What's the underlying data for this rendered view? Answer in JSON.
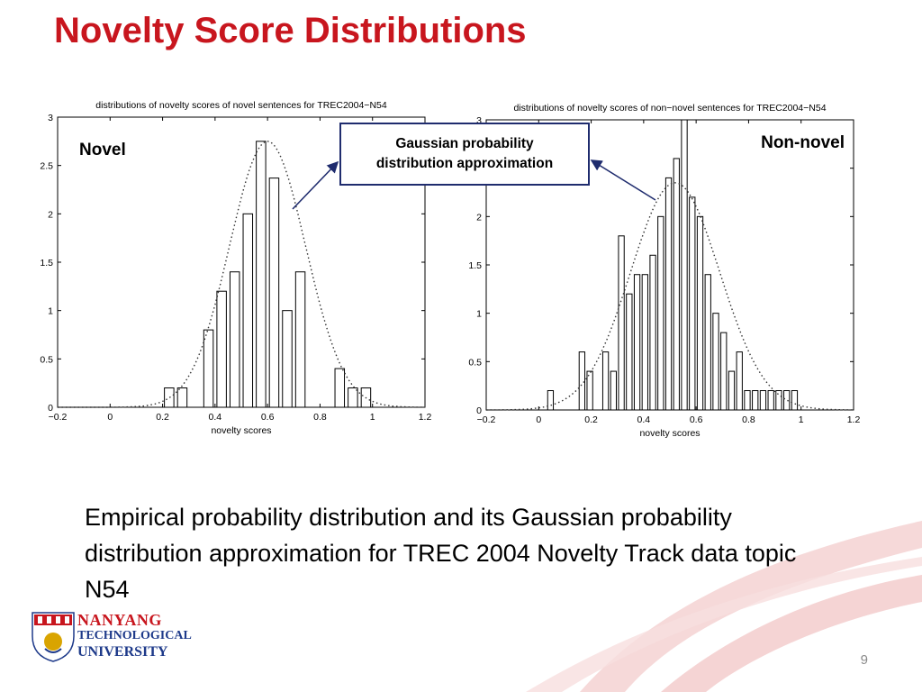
{
  "slide": {
    "title": "Novelty Score Distributions",
    "callout": [
      "Gaussian probability",
      "distribution approximation"
    ],
    "caption": "Empirical probability distribution and its Gaussian probability distribution approximation for TREC 2004 Novelty Track data topic N54",
    "logo_lines": [
      "NANYANG",
      "TECHNOLOGICAL",
      "UNIVERSITY"
    ],
    "page_number": "9",
    "colors": {
      "title": "#c8161e",
      "callout_border": "#1f2c6e",
      "arrow": "#1f2c6e",
      "swoosh": "#e8a9a9"
    }
  },
  "chart_data": [
    {
      "type": "bar",
      "overlay": "gaussian-dotted",
      "title": "distributions of novelty scores of novel sentences for TREC2004−N54",
      "label": "Novel",
      "xlabel": "novelty scores",
      "ylabel": "",
      "xlim": [
        -0.2,
        1.2
      ],
      "ylim": [
        0,
        3
      ],
      "xticks": [
        "−0.2",
        "0",
        "0.2",
        "0.4",
        "0.6",
        "0.8",
        "1",
        "1.2"
      ],
      "xtick_values": [
        -0.2,
        0,
        0.2,
        0.4,
        0.6,
        0.8,
        1,
        1.2
      ],
      "yticks": [
        "0",
        "0.5",
        "1",
        "1.5",
        "2",
        "2.5",
        "3"
      ],
      "ytick_values": [
        0,
        0.5,
        1,
        1.5,
        2,
        2.5,
        3
      ],
      "bin_width": 0.05,
      "bin_centers": [
        0.225,
        0.275,
        0.325,
        0.375,
        0.425,
        0.475,
        0.525,
        0.575,
        0.625,
        0.675,
        0.725,
        0.775,
        0.825,
        0.875,
        0.925,
        0.975
      ],
      "values": [
        0.2,
        0.2,
        0,
        0.8,
        1.2,
        1.4,
        2.0,
        2.75,
        2.37,
        1.0,
        1.4,
        0,
        0,
        0.4,
        0.2,
        0.2
      ],
      "gaussian": {
        "mean": 0.6,
        "std": 0.145,
        "peak": 2.75
      }
    },
    {
      "type": "bar",
      "overlay": "gaussian-dotted",
      "title": "distributions of novelty scores of non−novel sentences for TREC2004−N54",
      "label": "Non-novel",
      "xlabel": "novelty scores",
      "ylabel": "",
      "xlim": [
        -0.2,
        1.2
      ],
      "ylim": [
        0,
        3
      ],
      "xticks": [
        "−0.2",
        "0",
        "0.2",
        "0.4",
        "0.6",
        "0.8",
        "1",
        "1.2"
      ],
      "xtick_values": [
        -0.2,
        0,
        0.2,
        0.4,
        0.6,
        0.8,
        1,
        1.2
      ],
      "yticks": [
        "0",
        "0.5",
        "1",
        "1.5",
        "2",
        "2.5",
        "3"
      ],
      "ytick_values": [
        0,
        0.5,
        1,
        1.5,
        2,
        2.5,
        3
      ],
      "bin_width": 0.03,
      "bin_centers": [
        0.045,
        0.165,
        0.195,
        0.255,
        0.285,
        0.315,
        0.345,
        0.375,
        0.405,
        0.435,
        0.465,
        0.495,
        0.525,
        0.555,
        0.585,
        0.615,
        0.645,
        0.675,
        0.705,
        0.735,
        0.765,
        0.795,
        0.825,
        0.855,
        0.885,
        0.915,
        0.945,
        0.975
      ],
      "values": [
        0.2,
        0.6,
        0.4,
        0.6,
        0.4,
        1.8,
        1.2,
        1.4,
        1.4,
        1.6,
        2.0,
        2.4,
        2.6,
        3.0,
        2.2,
        2.0,
        1.4,
        1.0,
        0.8,
        0.4,
        0.6,
        0.2,
        0.2,
        0.2,
        0.2,
        0.2,
        0.2,
        0.2
      ],
      "gaussian": {
        "mean": 0.52,
        "std": 0.17,
        "peak": 2.35
      }
    }
  ]
}
